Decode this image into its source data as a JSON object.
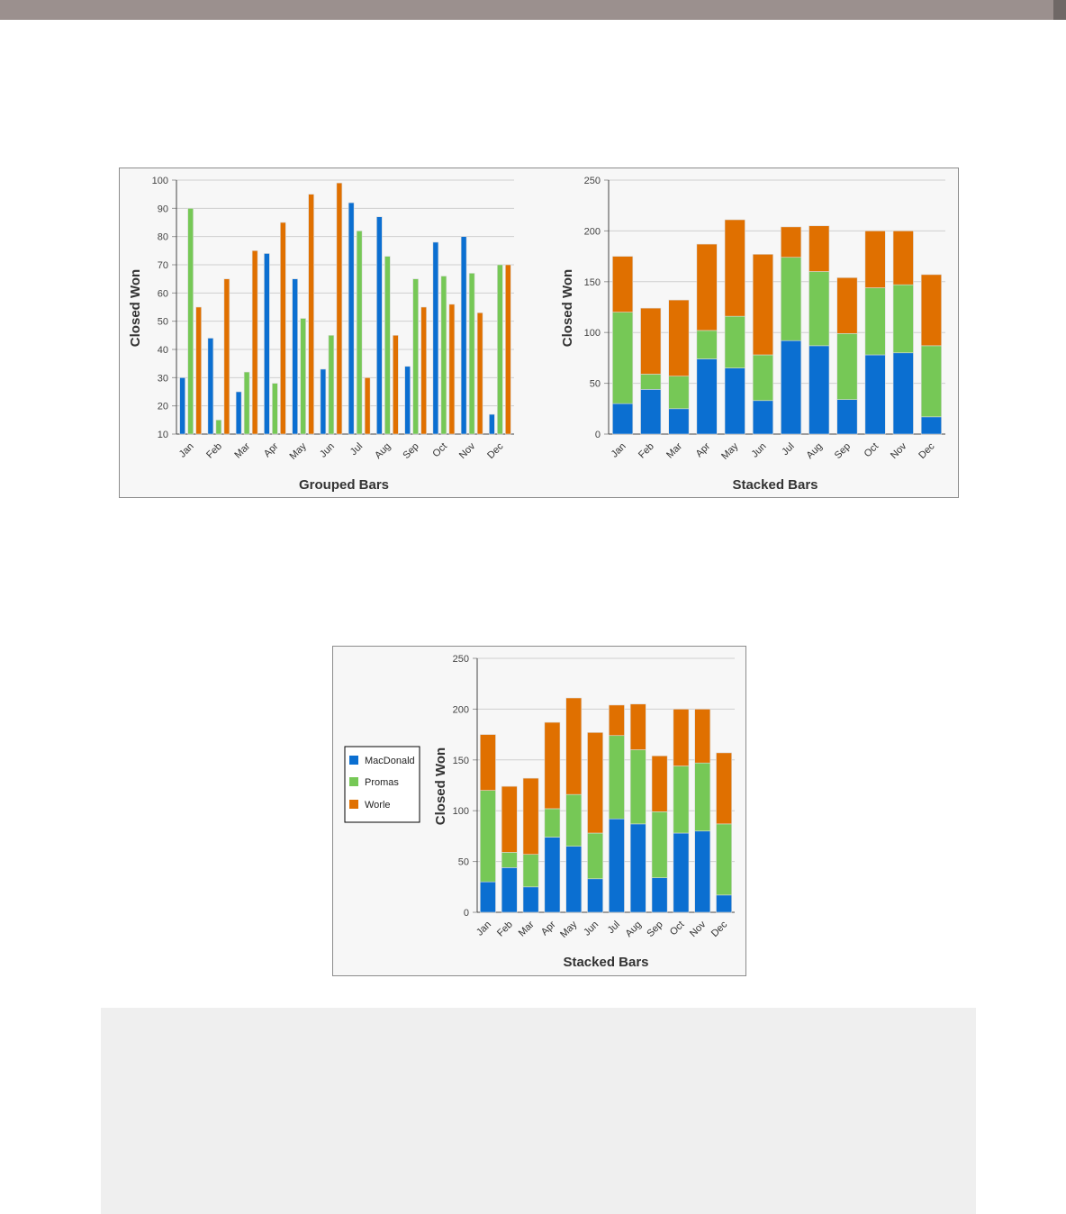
{
  "colors": {
    "MacDonald": "#0b6fd1",
    "Promas": "#76c856",
    "Worle": "#e07000"
  },
  "chart_data": [
    {
      "type": "bar",
      "mode": "grouped",
      "title": "Grouped Bars",
      "xlabel": "Grouped Bars",
      "ylabel": "Closed Won",
      "ylim": [
        10,
        100
      ],
      "yticks": [
        10,
        20,
        30,
        40,
        50,
        60,
        70,
        80,
        90,
        100
      ],
      "grid": true,
      "categories": [
        "Jan",
        "Feb",
        "Mar",
        "Apr",
        "May",
        "Jun",
        "Jul",
        "Aug",
        "Sep",
        "Oct",
        "Nov",
        "Dec"
      ],
      "series": [
        {
          "name": "MacDonald",
          "values": [
            30,
            44,
            25,
            74,
            65,
            33,
            92,
            87,
            34,
            78,
            80,
            17
          ]
        },
        {
          "name": "Promas",
          "values": [
            90,
            15,
            32,
            28,
            51,
            45,
            82,
            73,
            65,
            66,
            67,
            70
          ]
        },
        {
          "name": "Worle",
          "values": [
            55,
            65,
            75,
            85,
            95,
            99,
            30,
            45,
            55,
            56,
            53,
            70
          ]
        }
      ]
    },
    {
      "type": "bar",
      "mode": "stacked",
      "title": "Stacked Bars",
      "xlabel": "Stacked Bars",
      "ylabel": "Closed Won",
      "ylim": [
        0,
        250
      ],
      "yticks": [
        0,
        50,
        100,
        150,
        200,
        250
      ],
      "grid": true,
      "categories": [
        "Jan",
        "Feb",
        "Mar",
        "Apr",
        "May",
        "Jun",
        "Jul",
        "Aug",
        "Sep",
        "Oct",
        "Nov",
        "Dec"
      ],
      "series": [
        {
          "name": "MacDonald",
          "values": [
            30,
            44,
            25,
            74,
            65,
            33,
            92,
            87,
            34,
            78,
            80,
            17
          ]
        },
        {
          "name": "Promas",
          "values": [
            90,
            15,
            32,
            28,
            51,
            45,
            82,
            73,
            65,
            66,
            67,
            70
          ]
        },
        {
          "name": "Worle",
          "values": [
            55,
            65,
            75,
            85,
            95,
            99,
            30,
            45,
            55,
            56,
            53,
            70
          ]
        }
      ]
    },
    {
      "type": "bar",
      "mode": "stacked",
      "title": "Stacked Bars",
      "xlabel": "Stacked Bars",
      "ylabel": "Closed Won",
      "ylim": [
        0,
        250
      ],
      "yticks": [
        0,
        50,
        100,
        150,
        200,
        250
      ],
      "grid": true,
      "legend": "left",
      "legend_entries": [
        "MacDonald",
        "Promas",
        "Worle"
      ],
      "categories": [
        "Jan",
        "Feb",
        "Mar",
        "Apr",
        "May",
        "Jun",
        "Jul",
        "Aug",
        "Sep",
        "Oct",
        "Nov",
        "Dec"
      ],
      "series": [
        {
          "name": "MacDonald",
          "values": [
            30,
            44,
            25,
            74,
            65,
            33,
            92,
            87,
            34,
            78,
            80,
            17
          ]
        },
        {
          "name": "Promas",
          "values": [
            90,
            15,
            32,
            28,
            51,
            45,
            82,
            73,
            65,
            66,
            67,
            70
          ]
        },
        {
          "name": "Worle",
          "values": [
            55,
            65,
            75,
            85,
            95,
            99,
            30,
            45,
            55,
            56,
            53,
            70
          ]
        }
      ]
    }
  ]
}
